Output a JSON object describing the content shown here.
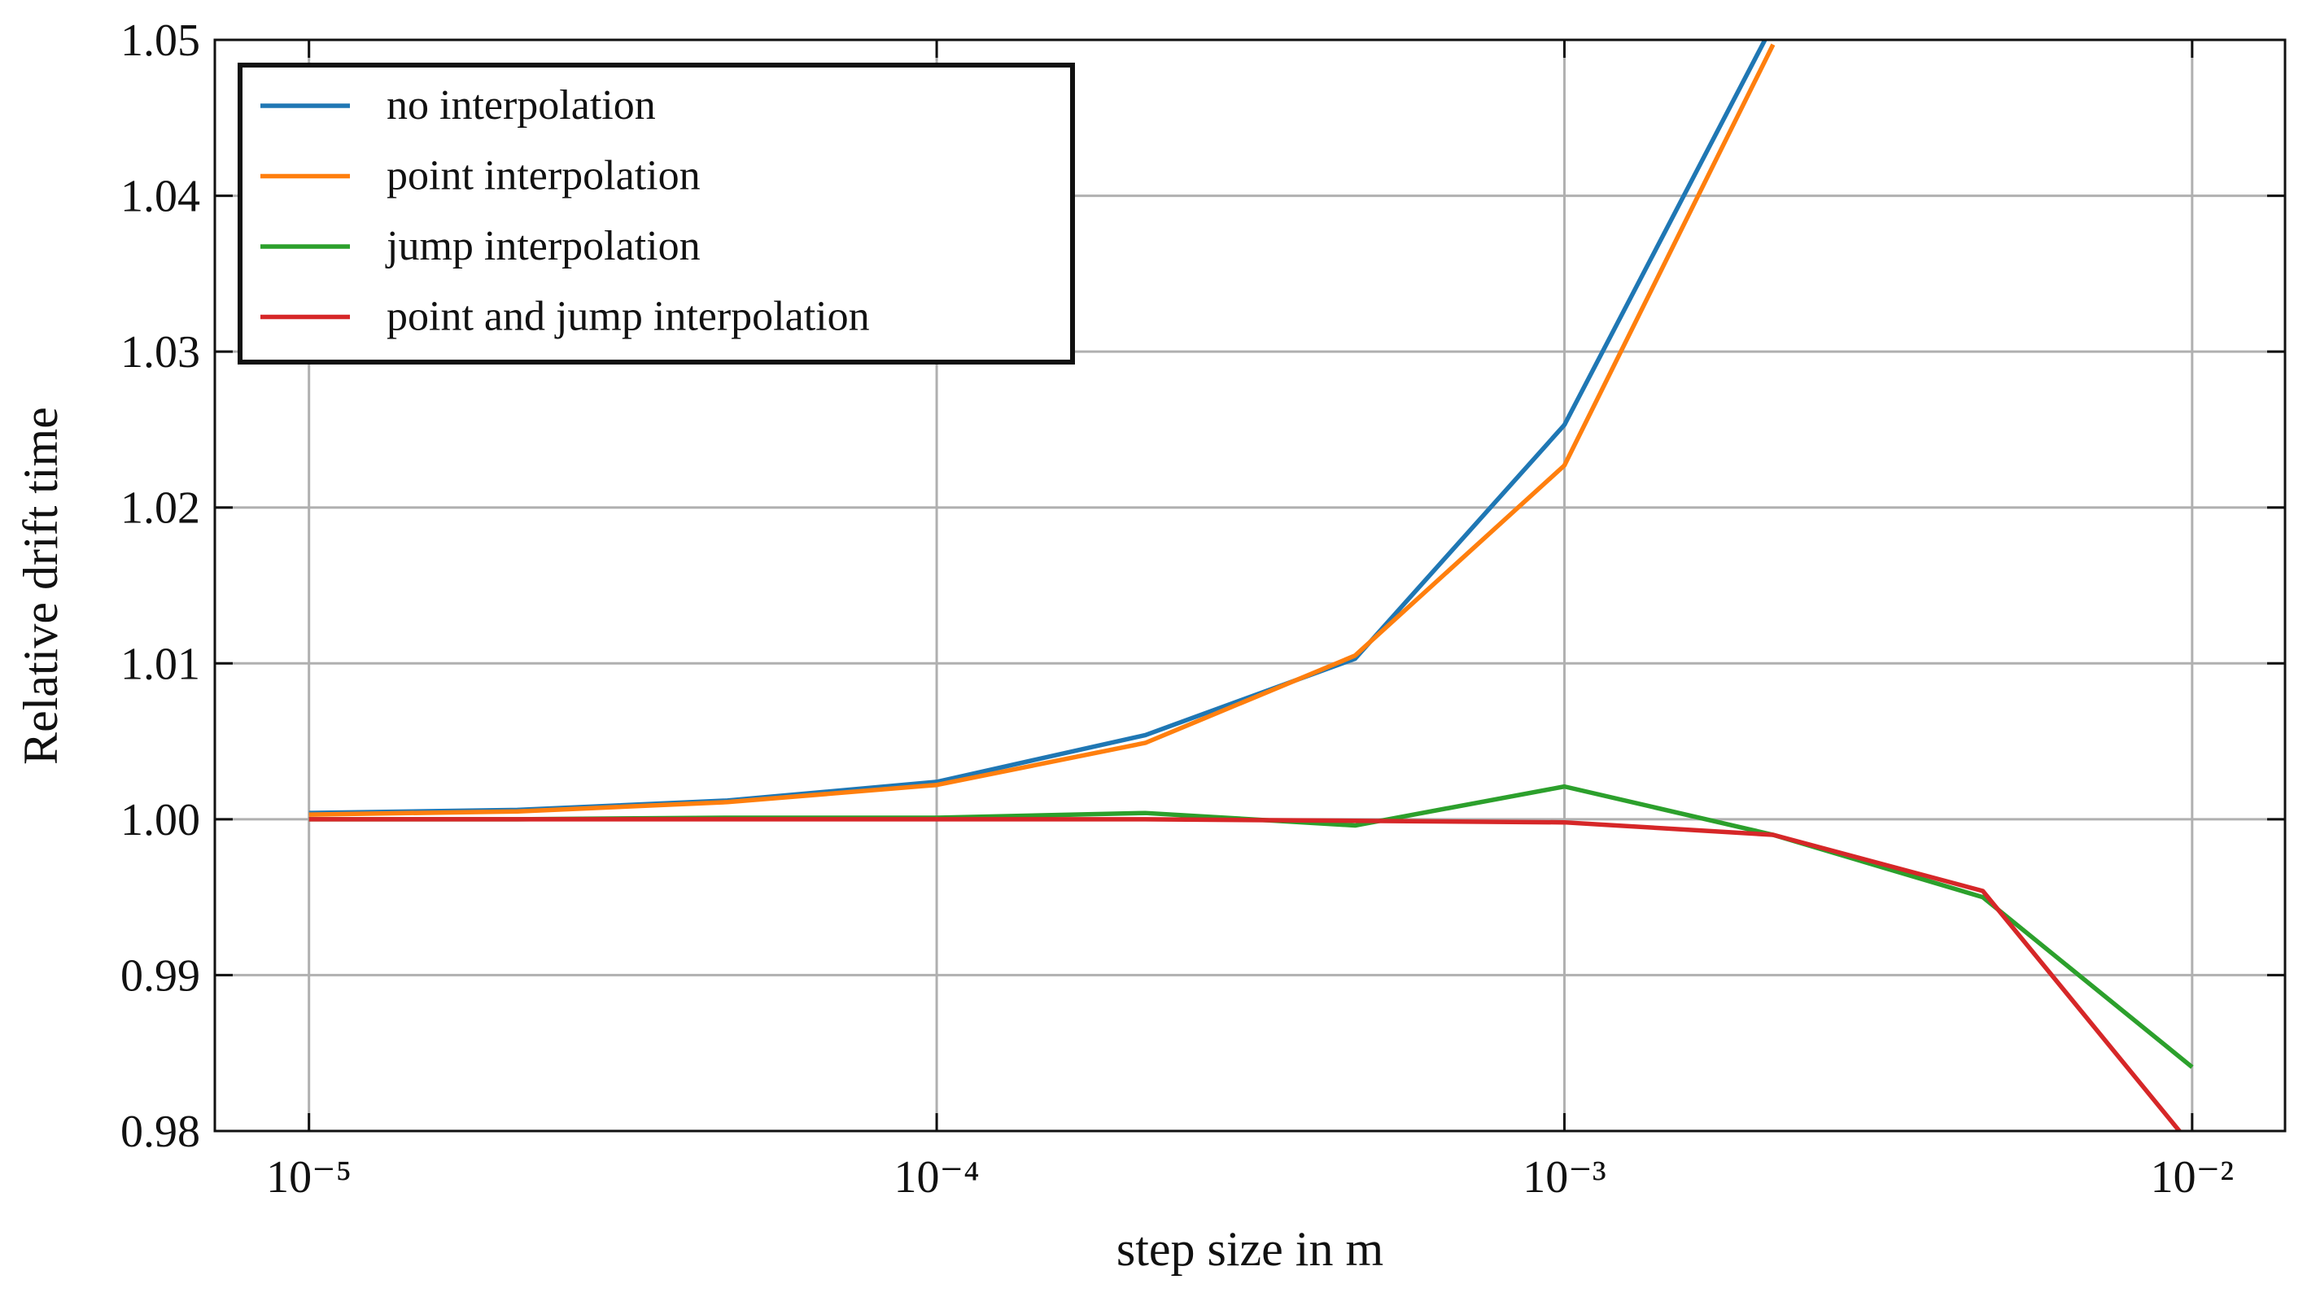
{
  "chart_data": {
    "type": "line",
    "xlabel": "step size in m",
    "ylabel": "Relative drift time",
    "xscale": "log",
    "grid": true,
    "legend": "upper left",
    "x": [
      1e-05,
      2.15e-05,
      4.64e-05,
      0.0001,
      0.000215,
      0.000464,
      0.001,
      0.00215,
      0.00464,
      0.01
    ],
    "xlim": [
      7.08e-06,
      0.01406
    ],
    "ylim": [
      0.98,
      1.05
    ],
    "xticks": [
      {
        "value": 1e-05,
        "label": "10⁻⁵"
      },
      {
        "value": 0.0001,
        "label": "10⁻⁴"
      },
      {
        "value": 0.001,
        "label": "10⁻³"
      },
      {
        "value": 0.01,
        "label": "10⁻²"
      }
    ],
    "yticks": [
      0.98,
      0.99,
      {
        "value": 1,
        "label": "1.00"
      },
      1.01,
      1.02,
      1.03,
      1.04,
      1.05
    ],
    "series": [
      {
        "name": "no interpolation",
        "color": "#1f77b4",
        "values": [
          1.0004,
          1.0006,
          1.0012,
          1.0024,
          1.0054,
          1.0103,
          1.0253,
          1.051,
          null,
          null
        ]
      },
      {
        "name": "point interpolation",
        "color": "#ff7f0e",
        "values": [
          1.0003,
          1.0005,
          1.0011,
          1.0022,
          1.0049,
          1.0105,
          1.0227,
          1.0497,
          null,
          null
        ]
      },
      {
        "name": "jump interpolation",
        "color": "#2ca02c",
        "values": [
          1.0,
          1.0,
          1.0001,
          1.0001,
          1.0004,
          0.9996,
          1.0021,
          0.999,
          0.995,
          0.9841
        ]
      },
      {
        "name": "point and jump interpolation",
        "color": "#d62728",
        "values": [
          1.0,
          1.0,
          1.0,
          1.0,
          1.0,
          0.9999,
          0.9998,
          0.999,
          0.9954,
          0.979
        ]
      }
    ]
  }
}
